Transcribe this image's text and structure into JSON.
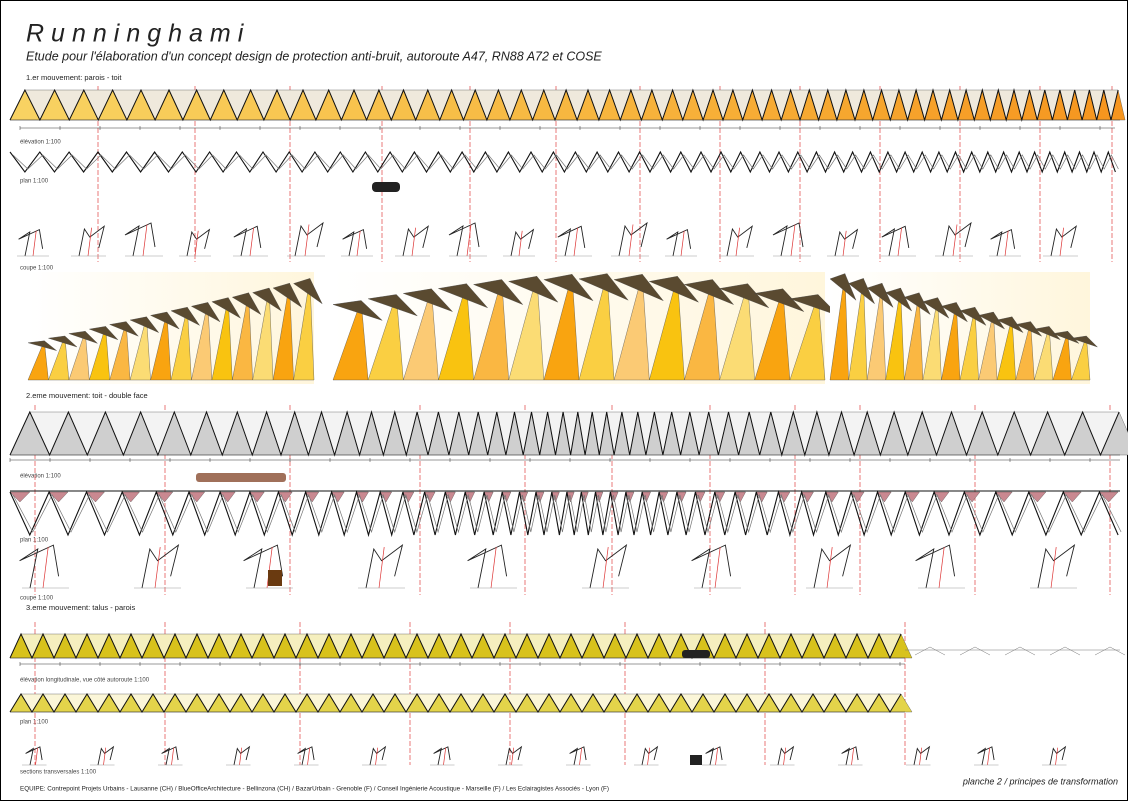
{
  "header": {
    "title": "Runninghami",
    "subtitle": "Etude pour l'élaboration d'un concept design de protection anti-bruit, autoroute A47, RN88 A72 et COSE"
  },
  "sections": [
    {
      "label": "1.er mouvement: parois - toit",
      "elevation": "élévation 1:100",
      "plan": "plan 1:100",
      "coupe": "coupe 1:100"
    },
    {
      "label": "2.eme mouvement: toit - double face",
      "elevation": "élévation 1:100",
      "plan": "plan 1:100",
      "coupe": "coupe 1:100"
    },
    {
      "label": "3.eme mouvement: talus - parois",
      "elevation": "élévation longitudinale, vue côté autoroute 1:100",
      "plan": "plan 1:100",
      "coupe": "sections transversales 1:100"
    }
  ],
  "footer": {
    "team": "EQUIPE:  Contrepoint Projets Urbains - Lausanne (CH) /  BlueOfficeArchitecture - Bellinzona (CH) /  BazarUrbain - Grenoble (F) /  Conseil Ingénierie Acoustique - Marseille (F) /  Les Eclairagistes Associés - Lyon (F)",
    "sheet": "planche 2 /  principes de transformation"
  }
}
